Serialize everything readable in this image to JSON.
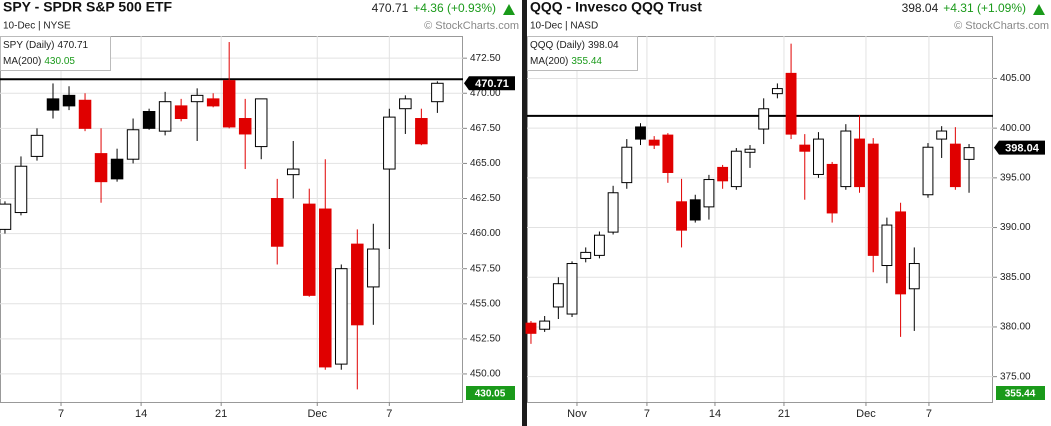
{
  "chart_data": [
    {
      "type": "candlestick",
      "title": "SPY - SPDR S&P 500 ETF",
      "subtitle": "10-Dec | NYSE",
      "copyright": "© StockCharts.com",
      "last": 470.71,
      "change": "+4.36 (+0.93%)",
      "series_label": "SPY (Daily)",
      "ma_label": "MA(200)",
      "ma_value": 430.05,
      "resistance": 471.0,
      "up_color": "#000000",
      "down_color": "#e00000",
      "ma_color": "#1a9a1a",
      "xlim": [
        -0.31,
        28.6
      ],
      "ylim": [
        448.0,
        474.08
      ],
      "xticks": [
        {
          "value": 3.5,
          "label": "7"
        },
        {
          "value": 8.5,
          "label": "14"
        },
        {
          "value": 13.5,
          "label": "21"
        },
        {
          "value": 19.5,
          "label": "Dec"
        },
        {
          "value": 24,
          "label": "7"
        }
      ],
      "yticks": [
        {
          "value": 472.5,
          "label": "472.50"
        },
        {
          "value": 470,
          "label": "470.00"
        },
        {
          "value": 467.5,
          "label": "467.50"
        },
        {
          "value": 465,
          "label": "465.00"
        },
        {
          "value": 462.5,
          "label": "462.50"
        },
        {
          "value": 460,
          "label": "460.00"
        },
        {
          "value": 457.5,
          "label": "457.50"
        },
        {
          "value": 455,
          "label": "455.00"
        },
        {
          "value": 452.5,
          "label": "452.50"
        },
        {
          "value": 450,
          "label": "450.00"
        }
      ],
      "grid": true,
      "x": [
        0,
        1,
        2,
        3,
        4,
        5,
        6,
        7,
        8,
        9,
        10,
        11,
        12,
        13,
        14,
        15,
        16,
        17,
        18,
        19,
        20,
        21,
        22,
        23,
        24,
        25,
        26,
        27
      ],
      "open": [
        460.3,
        461.5,
        465.5,
        469.6,
        469.85,
        469.5,
        465.7,
        465.3,
        465.3,
        468.7,
        467.3,
        469.1,
        469.4,
        469.6,
        470.9,
        468.2,
        466.2,
        462.5,
        464.2,
        462.1,
        461.75,
        450.7,
        459.25,
        456.2,
        464.6,
        468.9,
        468.2,
        469.4
      ],
      "high": [
        462.3,
        465.5,
        467.5,
        470.7,
        470.5,
        470.0,
        467.5,
        466.05,
        468.2,
        468.9,
        470.1,
        469.6,
        470.35,
        470.0,
        473.65,
        469.6,
        469.6,
        463.9,
        466.6,
        463.2,
        465.3,
        457.8,
        460.3,
        460.7,
        468.9,
        469.85,
        468.9,
        470.85
      ],
      "low": [
        460.0,
        461.3,
        465.2,
        468.2,
        468.8,
        467.3,
        462.2,
        463.7,
        465.0,
        467.4,
        467.0,
        468.0,
        466.6,
        469.0,
        467.5,
        464.6,
        465.3,
        457.8,
        462.5,
        455.5,
        450.3,
        450.3,
        448.9,
        453.5,
        458.9,
        467.1,
        466.3,
        468.6
      ],
      "close": [
        462.1,
        464.8,
        467.0,
        468.8,
        469.1,
        467.5,
        463.7,
        463.9,
        467.4,
        467.5,
        469.4,
        468.2,
        469.85,
        469.1,
        467.6,
        467.1,
        469.6,
        459.1,
        464.6,
        455.6,
        450.5,
        457.5,
        453.5,
        458.9,
        468.3,
        469.6,
        466.4,
        470.71
      ]
    },
    {
      "type": "candlestick",
      "title": "QQQ - Invesco QQQ Trust",
      "subtitle": "10-Dec | NASD",
      "copyright": "© StockCharts.com",
      "last": 398.04,
      "change": "+4.31 (+1.09%)",
      "series_label": "QQQ (Daily)",
      "ma_label": "MA(200)",
      "ma_value": 355.44,
      "resistance": 401.24,
      "up_color": "#000000",
      "down_color": "#e00000",
      "ma_color": "#1a9a1a",
      "xlim": [
        -0.29,
        33.75
      ],
      "ylim": [
        372.45,
        409.27
      ],
      "xticks": [
        {
          "value": 3.36,
          "label": "Nov"
        },
        {
          "value": 8.47,
          "label": "7"
        },
        {
          "value": 13.44,
          "label": "14"
        },
        {
          "value": 18.48,
          "label": "21"
        },
        {
          "value": 24.47,
          "label": "Dec"
        },
        {
          "value": 29.07,
          "label": "7"
        }
      ],
      "yticks": [
        {
          "value": 405,
          "label": "405.00"
        },
        {
          "value": 400,
          "label": "400.00"
        },
        {
          "value": 395,
          "label": "395.00"
        },
        {
          "value": 390,
          "label": "390.00"
        },
        {
          "value": 385,
          "label": "385.00"
        },
        {
          "value": 380,
          "label": "380.00"
        },
        {
          "value": 375,
          "label": "375.00"
        }
      ],
      "grid": true,
      "x": [
        0,
        1,
        2,
        3,
        4,
        5,
        6,
        7,
        8,
        9,
        10,
        11,
        12,
        13,
        14,
        15,
        16,
        17,
        18,
        19,
        20,
        21,
        22,
        23,
        24,
        25,
        26,
        27,
        28,
        29,
        30,
        31,
        32
      ],
      "open": [
        380.38,
        379.77,
        382.01,
        381.3,
        386.89,
        387.2,
        389.54,
        394.52,
        400.12,
        398.79,
        399.3,
        392.59,
        392.79,
        392.08,
        396.05,
        394.12,
        397.57,
        399.91,
        403.47,
        405.51,
        398.29,
        395.34,
        396.35,
        394.12,
        398.9,
        398.39,
        386.18,
        391.57,
        383.84,
        393.3,
        398.9,
        398.39,
        396.86
      ],
      "high": [
        380.6,
        381.1,
        385.0,
        386.6,
        388.0,
        389.6,
        394.2,
        398.9,
        400.5,
        399.2,
        399.5,
        394.9,
        393.3,
        395.3,
        396.3,
        398.0,
        398.3,
        403.0,
        404.5,
        408.5,
        399.4,
        399.6,
        396.6,
        400.4,
        401.3,
        399.0,
        391.0,
        392.5,
        388.0,
        398.5,
        400.2,
        400.1,
        398.4
      ],
      "low": [
        378.3,
        379.5,
        380.8,
        381.0,
        386.5,
        386.9,
        389.3,
        393.9,
        398.3,
        397.9,
        394.5,
        388.0,
        390.5,
        390.8,
        393.9,
        393.8,
        396.0,
        398.4,
        403.0,
        398.9,
        392.8,
        395.0,
        390.5,
        393.8,
        393.5,
        385.5,
        384.4,
        379.0,
        379.6,
        393.0,
        397.0,
        393.8,
        393.5
      ],
      "close": [
        379.36,
        380.59,
        384.35,
        386.38,
        387.5,
        389.23,
        393.5,
        398.08,
        398.9,
        398.29,
        395.54,
        389.74,
        390.76,
        394.83,
        394.7,
        397.68,
        397.88,
        401.95,
        403.98,
        399.4,
        397.68,
        398.9,
        391.47,
        399.71,
        394.12,
        387.2,
        390.25,
        383.33,
        386.38,
        398.08,
        399.71,
        394.12,
        398.04
      ]
    }
  ]
}
